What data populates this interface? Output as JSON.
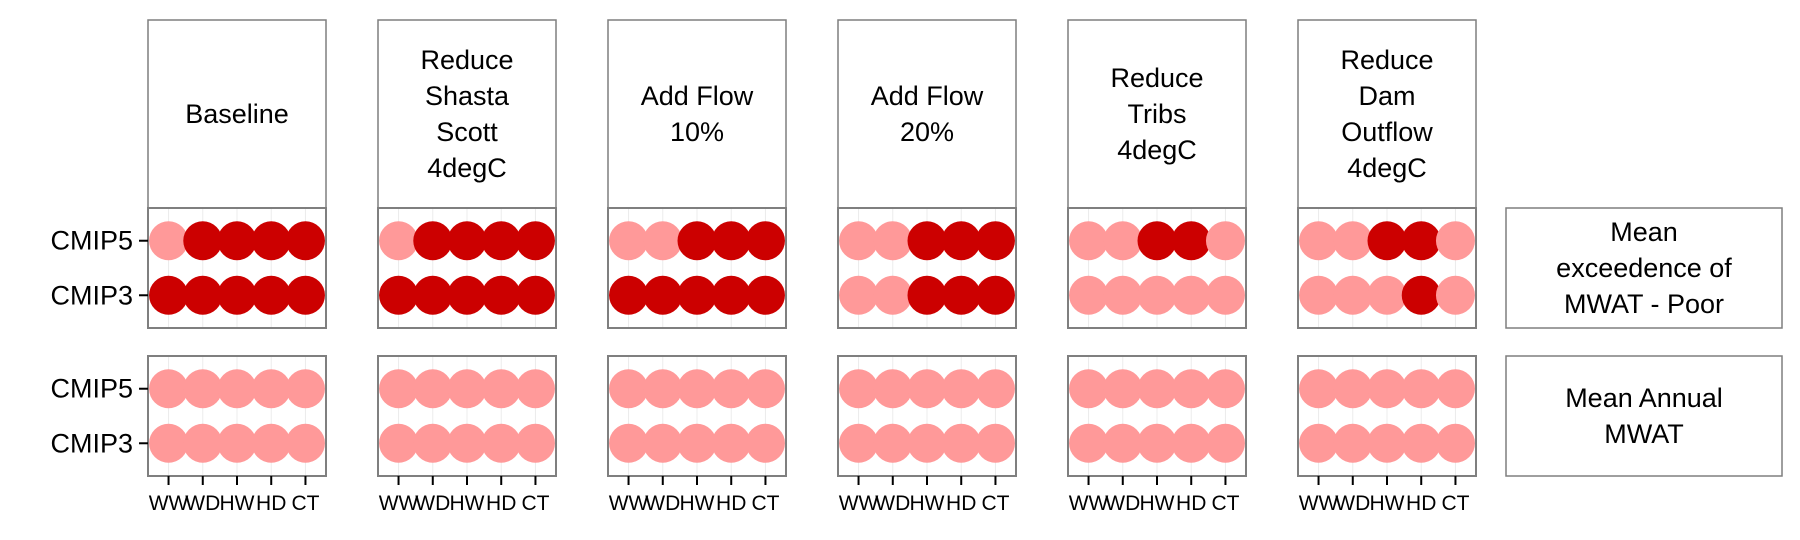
{
  "chart_data": {
    "type": "scatter",
    "facet_columns": [
      {
        "label": [
          "Baseline"
        ]
      },
      {
        "label": [
          "Reduce",
          "Shasta",
          "Scott",
          "4degC"
        ]
      },
      {
        "label": [
          "Add Flow",
          "10%"
        ]
      },
      {
        "label": [
          "Add Flow",
          "20%"
        ]
      },
      {
        "label": [
          "Reduce",
          "Tribs",
          "4degC"
        ]
      },
      {
        "label": [
          "Reduce",
          "Dam",
          "Outflow",
          "4degC"
        ]
      }
    ],
    "facet_rows": [
      {
        "label": [
          "Mean",
          "exceedence of",
          "MWAT - Poor"
        ]
      },
      {
        "label": [
          "Mean Annual",
          "MWAT"
        ]
      }
    ],
    "x_categories": [
      "WW",
      "WD",
      "HW",
      "HD",
      "CT"
    ],
    "y_categories": [
      "CMIP5",
      "CMIP3"
    ],
    "colors": {
      "high": "#CC0000",
      "low": "#FF9999"
    },
    "values": [
      [
        [
          [
            0,
            1,
            1,
            1,
            1
          ],
          [
            1,
            1,
            1,
            1,
            1
          ]
        ],
        [
          [
            0,
            0,
            0,
            0,
            0
          ],
          [
            0,
            0,
            0,
            0,
            0
          ]
        ]
      ],
      [
        [
          [
            0,
            1,
            1,
            1,
            1
          ],
          [
            1,
            1,
            1,
            1,
            1
          ]
        ],
        [
          [
            0,
            0,
            0,
            0,
            0
          ],
          [
            0,
            0,
            0,
            0,
            0
          ]
        ]
      ],
      [
        [
          [
            0,
            0,
            1,
            1,
            1
          ],
          [
            1,
            1,
            1,
            1,
            1
          ]
        ],
        [
          [
            0,
            0,
            0,
            0,
            0
          ],
          [
            0,
            0,
            0,
            0,
            0
          ]
        ]
      ],
      [
        [
          [
            0,
            0,
            1,
            1,
            1
          ],
          [
            0,
            0,
            1,
            1,
            1
          ]
        ],
        [
          [
            0,
            0,
            0,
            0,
            0
          ],
          [
            0,
            0,
            0,
            0,
            0
          ]
        ]
      ],
      [
        [
          [
            0,
            0,
            1,
            1,
            0
          ],
          [
            0,
            0,
            0,
            0,
            0
          ]
        ],
        [
          [
            0,
            0,
            0,
            0,
            0
          ],
          [
            0,
            0,
            0,
            0,
            0
          ]
        ]
      ],
      [
        [
          [
            0,
            0,
            1,
            1,
            0
          ],
          [
            0,
            0,
            0,
            1,
            0
          ]
        ],
        [
          [
            0,
            0,
            0,
            0,
            0
          ],
          [
            0,
            0,
            0,
            0,
            0
          ]
        ]
      ]
    ]
  }
}
